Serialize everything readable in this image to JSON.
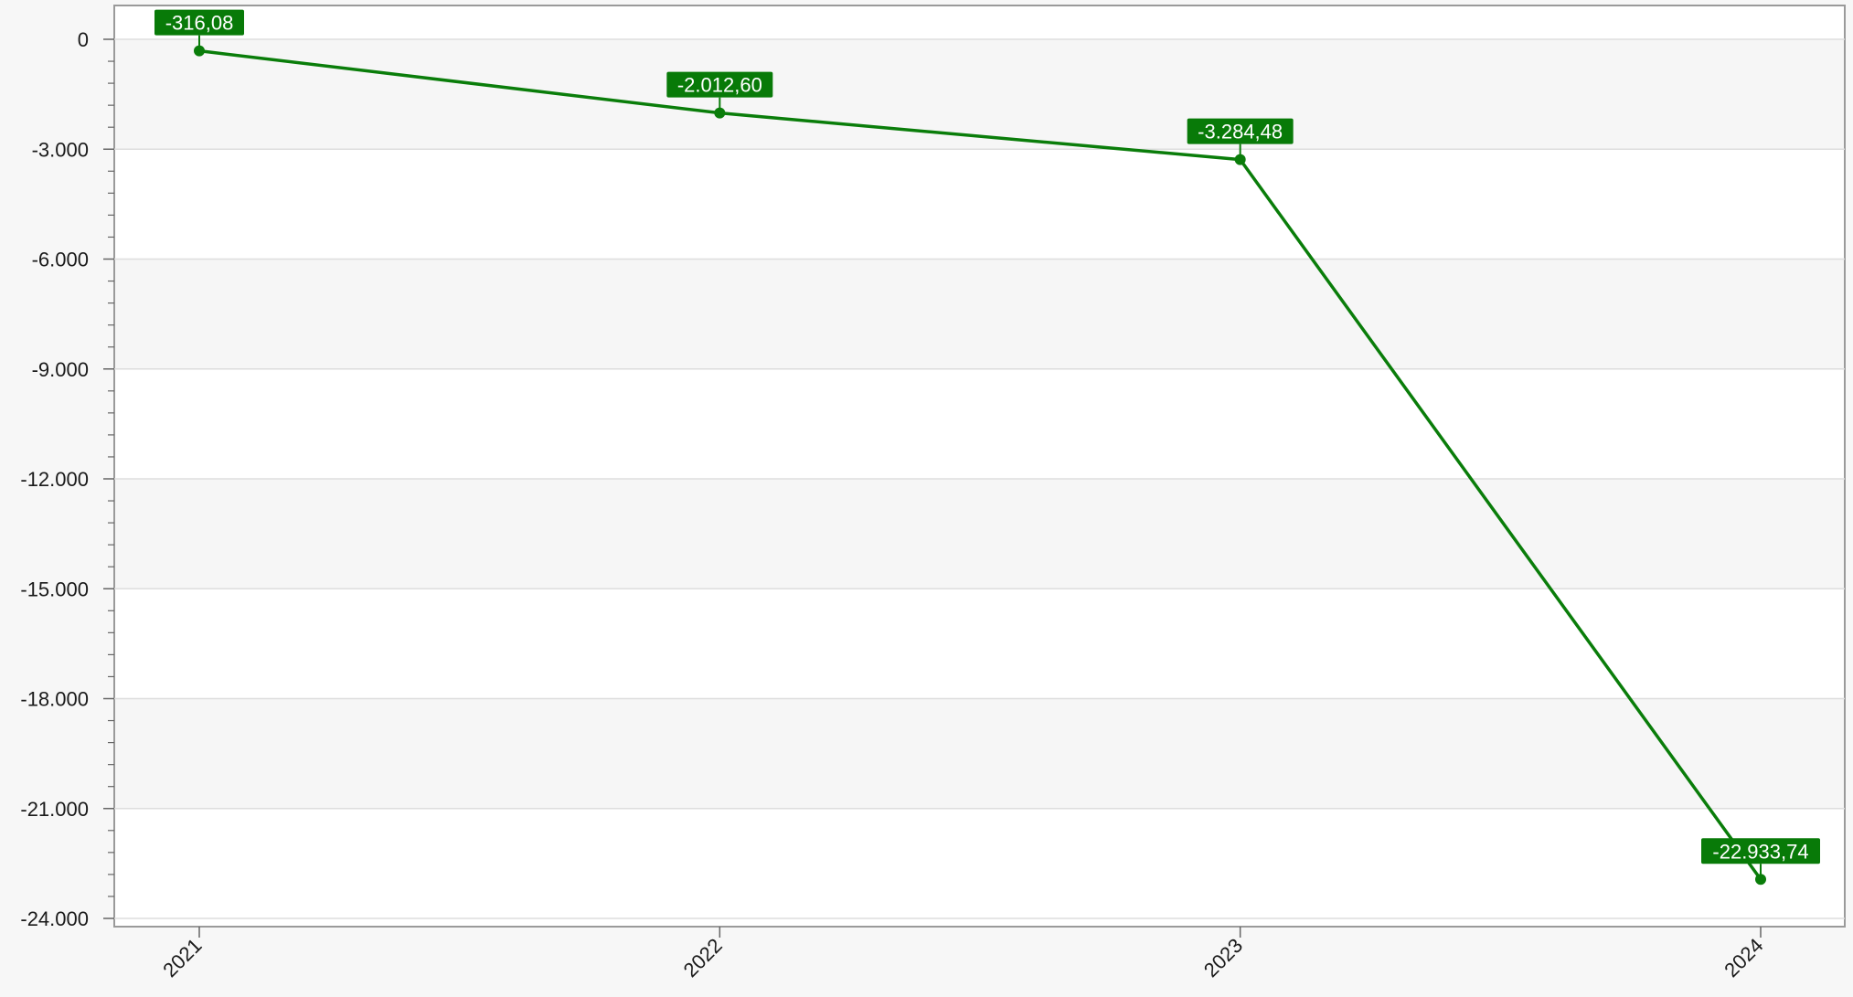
{
  "chart_data": {
    "type": "line",
    "title": "",
    "xlabel": "",
    "ylabel": "",
    "categories": [
      "2021",
      "2022",
      "2023",
      "2024"
    ],
    "series": [
      {
        "values": [
          -316.08,
          -2012.6,
          -3284.48,
          -22933.74
        ]
      }
    ],
    "data_labels": [
      "-316,08",
      "-2.012,60",
      "-3.284,48",
      "-22.933,74"
    ],
    "ylim": [
      -24000,
      0
    ],
    "yticks": [
      0,
      -3000,
      -6000,
      -9000,
      -12000,
      -15000,
      -18000,
      -21000,
      -24000
    ],
    "ytick_labels": [
      "0",
      "-3.000",
      "-6.000",
      "-9.000",
      "-12.000",
      "-15.000",
      "-18.000",
      "-21.000",
      "-24.000"
    ],
    "grid": true,
    "legend": "none",
    "colors": {
      "line": "#0a7d0a",
      "label_bg": "#087a08",
      "label_text": "#ffffff",
      "band_alt": "#f6f6f6",
      "band": "#ffffff",
      "grid": "#dddddd",
      "axis": "#666666",
      "page_bg": "#f7f7f7"
    }
  }
}
